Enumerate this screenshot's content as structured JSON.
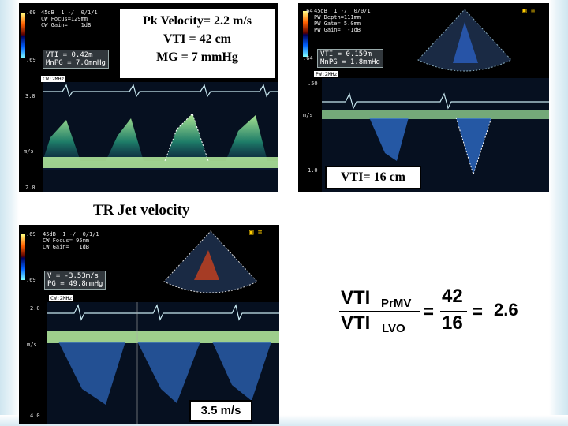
{
  "panel_cw_mv": {
    "header": "45dB  1 -/  0/1/1\nCW Focus=129mm\nCW Gain=    1dB",
    "color_top": ".69",
    "color_bottom": ".69",
    "readout": "VTI = 0.42m\nMnPG = 7.0mmHg",
    "mode": "CW:2MHz",
    "scale_top": "3.0",
    "scale_unit": "m/s",
    "scale_bottom": "2.0",
    "caption_line1": "Pk Velocity= 2.2 m/s",
    "caption_line2": "VTI = 42 cm",
    "caption_line3": "MG = 7 mmHg"
  },
  "panel_pw_lvot": {
    "header": "45dB  1 -/  0/0/1\nPW Depth=111mm\nPW Gate= 5.0mm\nPW Gain=  -1dB",
    "color_top": ".64",
    "color_bottom": ".64",
    "readout": "VTI = 0.159m\nMnPG = 1.8mmHg",
    "mode": "PW:2MHz",
    "scale_top": ".50",
    "scale_unit": "m/s",
    "scale_bottom": "1.0",
    "caption": "VTI= 16 cm"
  },
  "panel_cw_tr": {
    "heading": "TR Jet velocity",
    "header": "45dB  1 -/  0/1/1\nCW Focus= 95mm\nCW Gain=   1dB",
    "color_top": ".69",
    "color_bottom": ".69",
    "readout": "V = -3.53m/s\nPG = 49.8mmHg",
    "mode": "CW:2MHz",
    "scale_top": "2.0",
    "scale_unit": "m/s",
    "scale_bottom": "4.0",
    "caption": "3.5 m/s"
  },
  "equation": {
    "num_label": "VTI",
    "num_sub": "PrMV",
    "den_label": "VTI",
    "den_sub": "LVO",
    "eq1": "=",
    "num_value": "42",
    "den_value": "16",
    "eq2": "=",
    "result": "2.6"
  }
}
